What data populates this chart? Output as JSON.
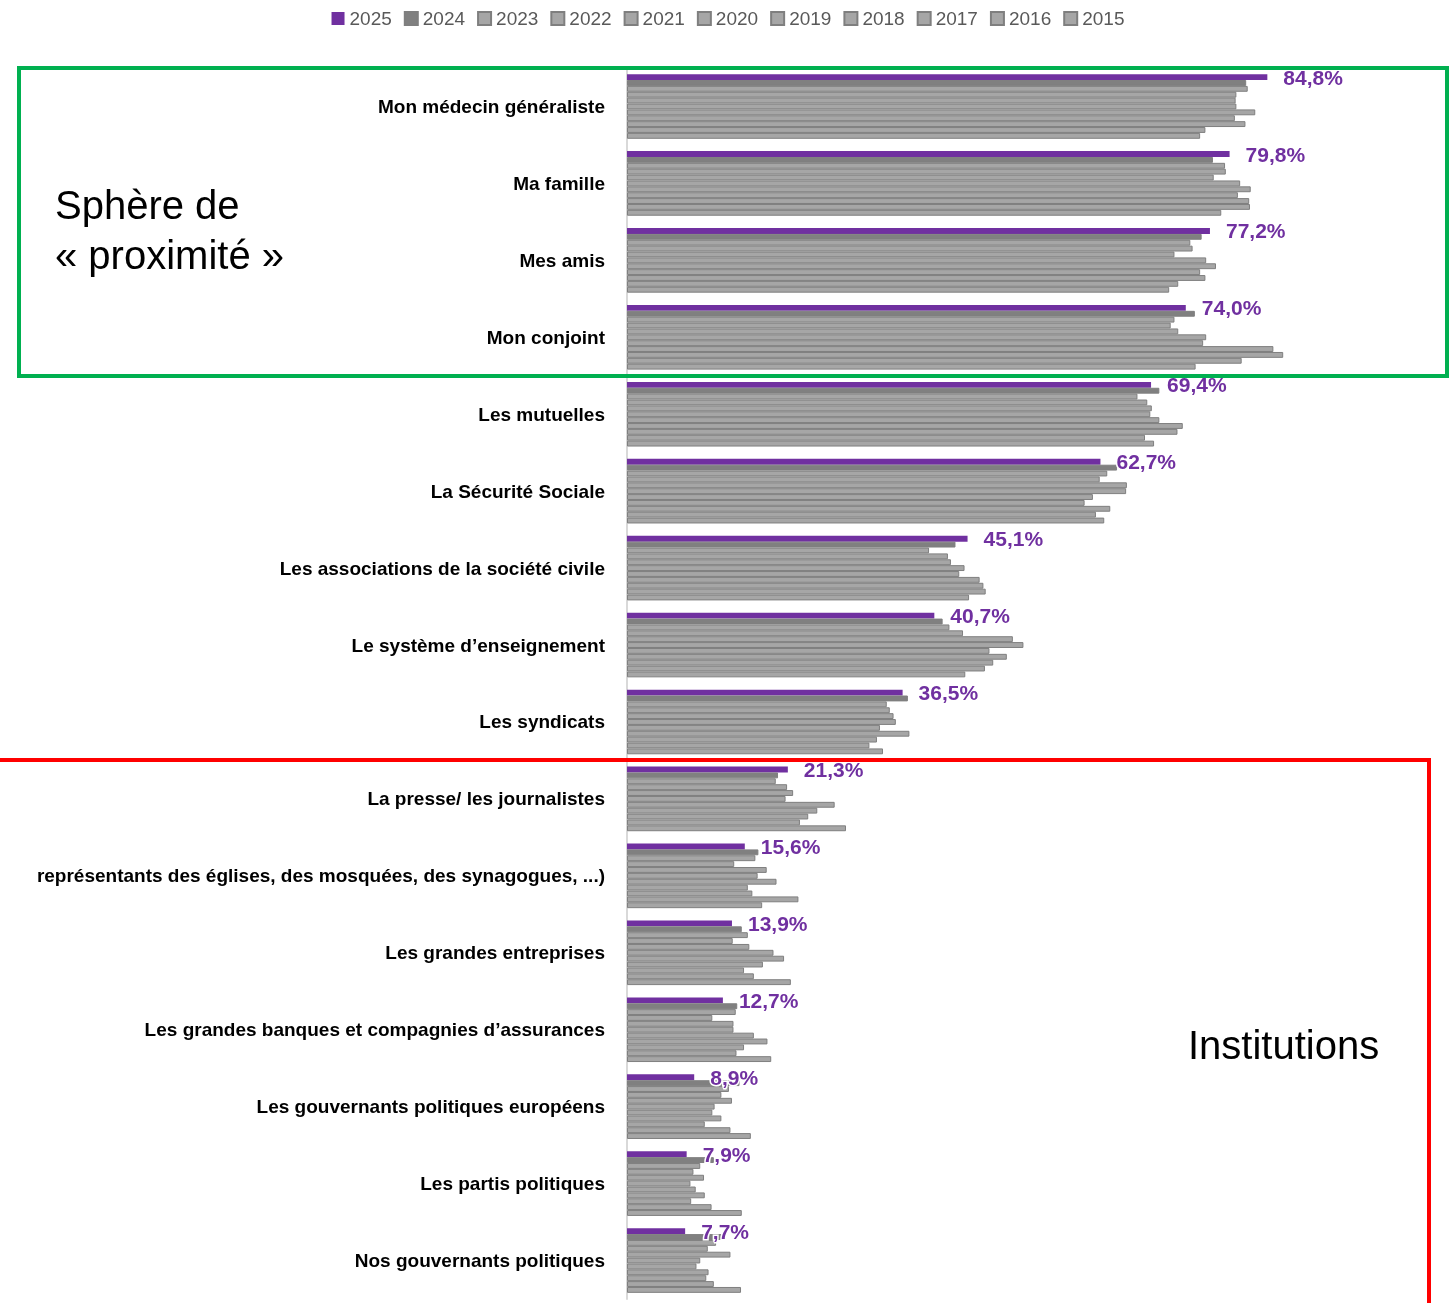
{
  "chart_data": {
    "type": "bar",
    "orientation": "horizontal",
    "categories": [
      "Mon médecin généraliste",
      "Ma famille",
      "Mes amis",
      "Mon conjoint",
      "Les mutuelles",
      "La Sécurité Sociale",
      "Les associations de la société civile",
      "Le système d’enseignement",
      "Les syndicats",
      "La presse/ les journalistes",
      "représentants des églises, des mosquées, des synagogues, ...)",
      "Les grandes entreprises",
      "Les grandes banques et compagnies d’assurances",
      "Les gouvernants politiques européens",
      "Les partis politiques",
      "Nos gouvernants politiques"
    ],
    "series": [
      {
        "name": "2025",
        "color": "#7030a0",
        "values": [
          84.8,
          79.8,
          77.2,
          74.0,
          69.4,
          62.7,
          45.1,
          40.7,
          36.5,
          21.3,
          15.6,
          13.9,
          12.7,
          8.9,
          7.9,
          7.7
        ],
        "value_labels": [
          "84,8%",
          "79,8%",
          "77,2%",
          "74,0%",
          "69,4%",
          "62,7%",
          "45,1%",
          "40,7%",
          "36,5%",
          "21,3%",
          "15,6%",
          "13,9%",
          "12,7%",
          "8,9%",
          "7,9%",
          "7,7%"
        ]
      },
      {
        "name": "2024",
        "color": "#808080",
        "values": [
          82.0,
          77.6,
          76.1,
          75.2,
          70.5,
          64.9,
          43.5,
          41.8,
          37.2,
          20.0,
          17.4,
          15.2,
          14.6,
          14.9,
          11.5,
          12.6
        ]
      },
      {
        "name": "2023",
        "color": "#a6a6a6",
        "values": [
          82.2,
          79.2,
          74.6,
          72.5,
          67.6,
          63.6,
          40.0,
          42.7,
          34.4,
          19.7,
          17.0,
          16.0,
          14.4,
          13.5,
          9.7,
          11.8
        ]
      },
      {
        "name": "2022",
        "color": "#a6a6a6",
        "values": [
          80.7,
          79.3,
          74.9,
          72.0,
          68.9,
          62.6,
          42.5,
          44.5,
          34.8,
          21.2,
          14.2,
          14.0,
          11.3,
          12.5,
          8.8,
          10.7
        ]
      },
      {
        "name": "2021",
        "color": "#a6a6a6",
        "values": [
          80.6,
          77.7,
          72.5,
          73.0,
          69.5,
          66.2,
          42.9,
          51.1,
          35.3,
          22.0,
          18.5,
          16.2,
          14.1,
          13.9,
          10.2,
          13.7
        ]
      },
      {
        "name": "2020",
        "color": "#a6a6a6",
        "values": [
          80.7,
          81.2,
          76.7,
          76.7,
          69.3,
          66.1,
          44.7,
          52.5,
          35.6,
          21.0,
          17.3,
          19.4,
          14.1,
          11.6,
          8.4,
          9.7
        ]
      },
      {
        "name": "2019",
        "color": "#a6a6a6",
        "values": [
          83.2,
          82.6,
          78.0,
          76.3,
          70.5,
          61.7,
          44.0,
          48.0,
          33.5,
          27.5,
          19.8,
          20.8,
          16.8,
          11.3,
          9.1,
          9.2
        ]
      },
      {
        "name": "2018",
        "color": "#a6a6a6",
        "values": [
          80.5,
          80.9,
          75.9,
          85.6,
          73.6,
          60.6,
          46.7,
          50.3,
          37.4,
          25.2,
          16.0,
          18.0,
          18.6,
          12.5,
          10.3,
          10.8
        ]
      },
      {
        "name": "2017",
        "color": "#a6a6a6",
        "values": [
          81.9,
          82.4,
          76.6,
          86.9,
          72.9,
          64.0,
          47.2,
          48.5,
          33.1,
          24.0,
          16.6,
          15.5,
          15.5,
          10.3,
          8.5,
          10.5
        ]
      },
      {
        "name": "2016",
        "color": "#a6a6a6",
        "values": [
          76.6,
          82.5,
          73.0,
          81.4,
          68.6,
          62.1,
          47.5,
          47.4,
          32.1,
          22.9,
          22.7,
          16.8,
          14.5,
          13.7,
          11.2,
          11.5
        ]
      },
      {
        "name": "2015",
        "color": "#a6a6a6",
        "values": [
          75.9,
          78.7,
          71.8,
          75.3,
          69.8,
          63.2,
          45.3,
          44.8,
          33.9,
          29.0,
          17.9,
          21.7,
          19.1,
          16.4,
          15.2,
          15.1
        ]
      }
    ],
    "tick_labels": "y",
    "legend": "top",
    "annotations": [
      "Sphère de « proximité »",
      "Institutions"
    ]
  }
}
